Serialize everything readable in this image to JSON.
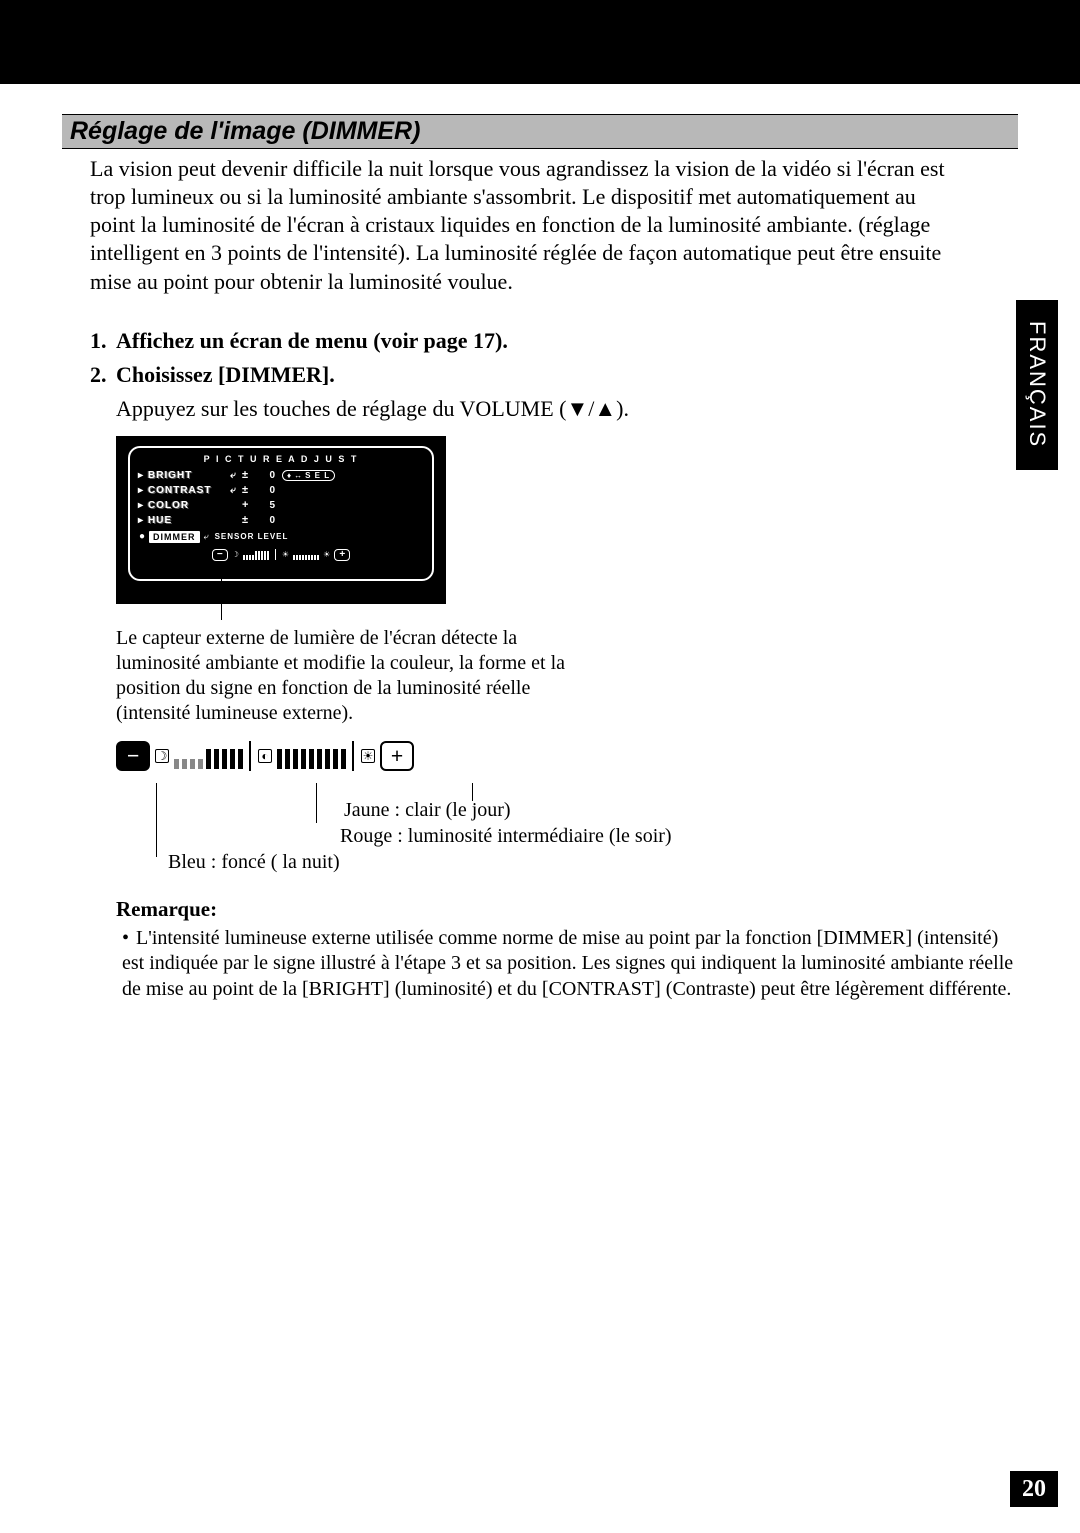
{
  "lang_tab": "FRANÇAIS",
  "page_number": "20",
  "section_heading": "Réglage de l'image (DIMMER)",
  "intro": "La vision peut devenir difficile la nuit lorsque vous agrandissez la vision de la vidéo si l'écran est trop lumineux ou si la luminosité ambiante s'assombrit. Le dispositif met automatiquement au point la luminosité de l'écran à cristaux liquides en fonction de la luminosité ambiante. (réglage intelligent en 3 points de l'intensité). La luminosité réglée de façon automatique peut être ensuite mise au point pour obtenir la luminosité voulue.",
  "steps": {
    "s1_num": "1.",
    "s1_text": "Affichez un écran de menu (voir page 17).",
    "s2_num": "2.",
    "s2_text": "Choisissez [DIMMER].",
    "s2_sub": "Appuyez sur les touches de réglage du VOLUME (▼/▲)."
  },
  "osd": {
    "title": "P I C T U R E   A D J U S T",
    "rows": {
      "bright": {
        "label": "BRIGHT",
        "val": "0"
      },
      "contrast": {
        "label": "CONTRAST",
        "val": "0"
      },
      "color": {
        "label": "COLOR",
        "val": "5"
      },
      "hue": {
        "label": "HUE",
        "val": "0"
      }
    },
    "sel": "S E L",
    "dimmer_label": "DIMMER",
    "sensor_label": "SENSOR LEVEL",
    "minus": "−",
    "plus": "+",
    "colors": {
      "bg": "#000000",
      "fg": "#ffffff"
    }
  },
  "caption": "Le capteur externe de lumière de l'écran détecte la luminosité ambiante et modifie la couleur, la forme et la position du signe en fonction de la luminosité réelle (intensité lumineuse externe).",
  "bigbar": {
    "minus": "−",
    "plus": "+"
  },
  "callouts": {
    "jaune": "Jaune  : clair (le jour)",
    "rouge": "Rouge  : luminosité intermédiaire (le soir)",
    "bleu": "Bleu  : foncé ( la nuit)"
  },
  "remarque": {
    "heading": "Remarque:",
    "item": "L'intensité lumineuse externe utilisée comme norme de mise au point par la fonction [DIMMER] (intensité) est indiquée par le signe illustré à l'étape 3 et sa position. Les signes qui indiquent la luminosité ambiante réelle de mise au point de la [BRIGHT] (luminosité) et du [CONTRAST] (Contraste) peut être légèrement différente."
  }
}
